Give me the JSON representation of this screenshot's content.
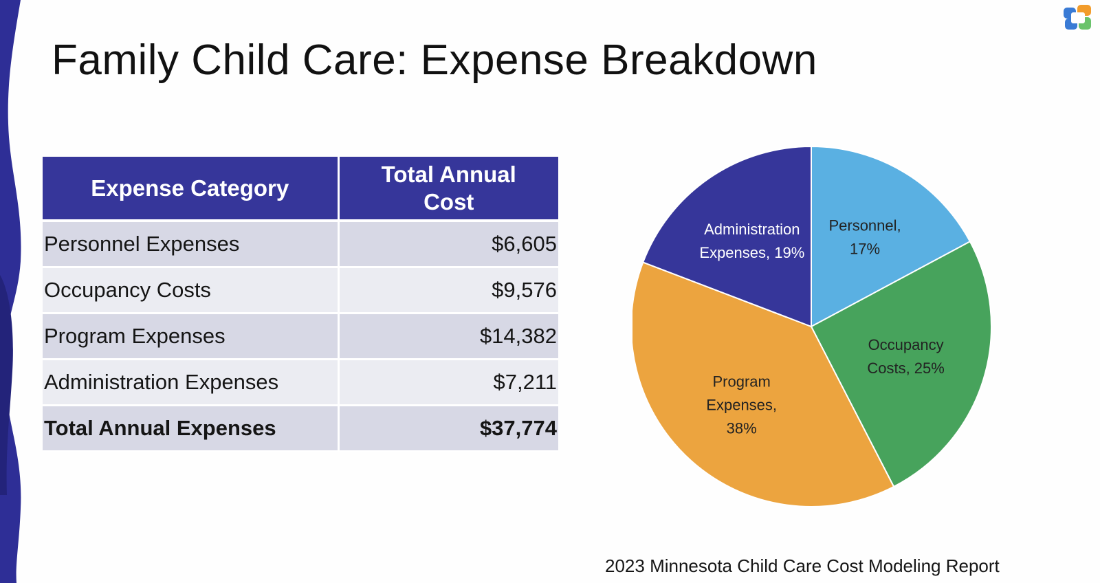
{
  "slide": {
    "title": "Family Child Care: Expense Breakdown",
    "source": "2023 Minnesota Child Care Cost Modeling Report",
    "logo_icon": "brand-logo-icon"
  },
  "colors": {
    "header_bg": "#36369a",
    "row_dark": "#d7d8e5",
    "row_light": "#ebecf2",
    "wave": "#2e2e96"
  },
  "table": {
    "headers": [
      "Expense Category",
      "Total Annual Cost"
    ],
    "rows": [
      {
        "category": "Personnel Expenses",
        "cost": "$6,605"
      },
      {
        "category": "Occupancy Costs",
        "cost": "$9,576"
      },
      {
        "category": "Program Expenses",
        "cost": "$14,382"
      },
      {
        "category": "Administration Expenses",
        "cost": "$7,211"
      }
    ],
    "total": {
      "category": "Total Annual Expenses",
      "cost": "$37,774"
    }
  },
  "chart_data": {
    "type": "pie",
    "title": "",
    "slices": [
      {
        "label": "Personnel,",
        "label2": "17%",
        "value": 17,
        "color": "#5ab0e2",
        "text": "dark"
      },
      {
        "label": "Occupancy",
        "label2": "Costs, 25%",
        "value": 25,
        "color": "#47a35c",
        "text": "dark"
      },
      {
        "label": "Program",
        "label2": "Expenses,",
        "label3": "38%",
        "value": 38,
        "color": "#eca43f",
        "text": "dark"
      },
      {
        "label": "Administration",
        "label2": "Expenses, 19%",
        "value": 19,
        "color": "#36369a",
        "text": "light"
      }
    ]
  }
}
